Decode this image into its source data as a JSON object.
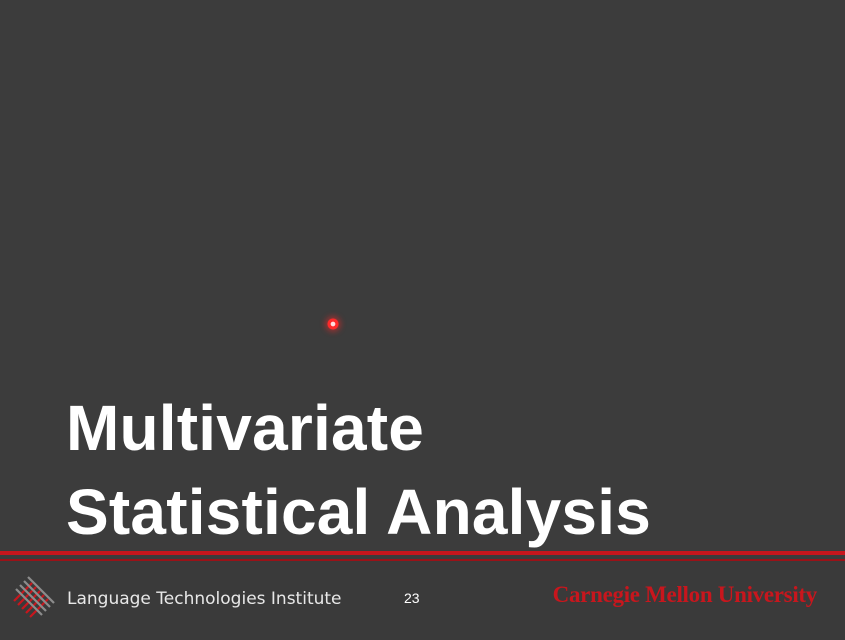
{
  "slide": {
    "title_line1": "Multivariate",
    "title_line2": "Statistical Analysis",
    "page_number": "23"
  },
  "footer": {
    "institute": "Language Technologies Institute",
    "university": "Carnegie Mellon University"
  },
  "colors": {
    "background": "#3c3c3c",
    "accent_red": "#c8161d",
    "title_text": "#ffffff"
  },
  "icons": {
    "institute_logo": "lti-logo-icon",
    "laser_pointer": "laser-pointer-icon"
  }
}
